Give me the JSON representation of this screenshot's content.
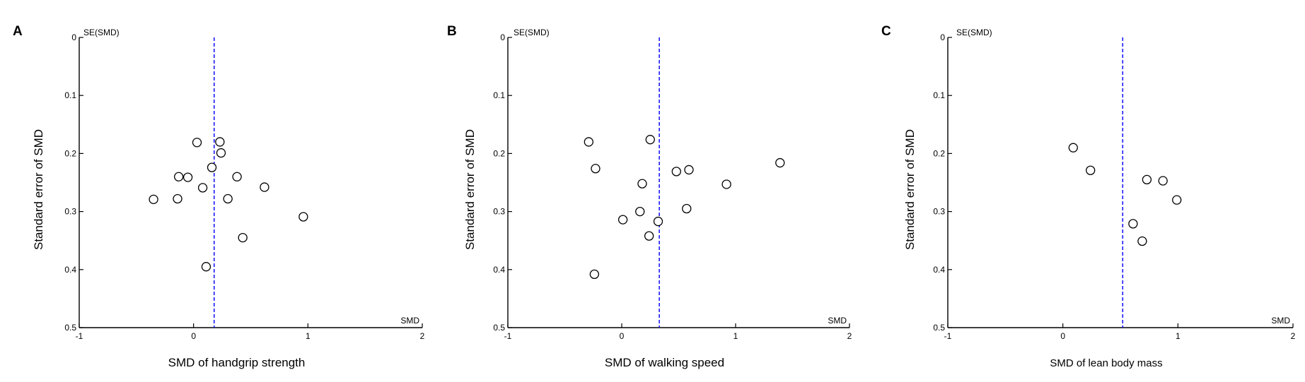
{
  "chart_data": [
    {
      "type": "scatter",
      "panel_label": "A",
      "xlabel": "SMD of handgrip strength",
      "ylabel": "Standard error of SMD",
      "x_axis_tag": "SMD",
      "y_axis_tag": "SE(SMD)",
      "xlim": [
        -1,
        2
      ],
      "ylim": [
        0,
        0.5
      ],
      "y_inverted": true,
      "xticks": [
        -1,
        0,
        1,
        2
      ],
      "yticks": [
        0,
        0.1,
        0.2,
        0.3,
        0.4,
        0.5
      ],
      "pooled_smd": 0.18,
      "points": [
        {
          "x": 0.03,
          "y": 0.181
        },
        {
          "x": 0.23,
          "y": 0.18
        },
        {
          "x": 0.24,
          "y": 0.199
        },
        {
          "x": 0.16,
          "y": 0.224
        },
        {
          "x": -0.13,
          "y": 0.24
        },
        {
          "x": -0.05,
          "y": 0.241
        },
        {
          "x": 0.38,
          "y": 0.24
        },
        {
          "x": 0.08,
          "y": 0.259
        },
        {
          "x": 0.62,
          "y": 0.258
        },
        {
          "x": -0.35,
          "y": 0.279
        },
        {
          "x": -0.14,
          "y": 0.278
        },
        {
          "x": 0.3,
          "y": 0.278
        },
        {
          "x": 0.96,
          "y": 0.309
        },
        {
          "x": 0.43,
          "y": 0.345
        },
        {
          "x": 0.11,
          "y": 0.395
        }
      ]
    },
    {
      "type": "scatter",
      "panel_label": "B",
      "xlabel": "SMD of walking speed",
      "ylabel": "Standard error of SMD",
      "x_axis_tag": "SMD",
      "y_axis_tag": "SE(SMD)",
      "xlim": [
        -1,
        2
      ],
      "ylim": [
        0,
        0.5
      ],
      "y_inverted": true,
      "xticks": [
        -1,
        0,
        1,
        2
      ],
      "yticks": [
        0,
        0.1,
        0.2,
        0.3,
        0.4,
        0.5
      ],
      "pooled_smd": 0.33,
      "points": [
        {
          "x": -0.29,
          "y": 0.18
        },
        {
          "x": 0.25,
          "y": 0.176
        },
        {
          "x": -0.23,
          "y": 0.226
        },
        {
          "x": 0.18,
          "y": 0.252
        },
        {
          "x": 0.48,
          "y": 0.231
        },
        {
          "x": 0.59,
          "y": 0.228
        },
        {
          "x": 1.39,
          "y": 0.216
        },
        {
          "x": 0.92,
          "y": 0.253
        },
        {
          "x": 0.57,
          "y": 0.295
        },
        {
          "x": 0.16,
          "y": 0.3
        },
        {
          "x": 0.01,
          "y": 0.314
        },
        {
          "x": 0.32,
          "y": 0.317
        },
        {
          "x": 0.24,
          "y": 0.342
        },
        {
          "x": -0.24,
          "y": 0.408
        }
      ]
    },
    {
      "type": "scatter",
      "panel_label": "C",
      "xlabel": "SMD of lean body mass",
      "ylabel": "Standard error of SMD",
      "x_axis_tag": "SMD",
      "y_axis_tag": "SE(SMD)",
      "xlim": [
        -1,
        2
      ],
      "ylim": [
        0,
        0.5
      ],
      "y_inverted": true,
      "xticks": [
        -1,
        0,
        1,
        2
      ],
      "yticks": [
        0,
        0.1,
        0.2,
        0.3,
        0.4,
        0.5
      ],
      "pooled_smd": 0.52,
      "points": [
        {
          "x": 0.09,
          "y": 0.19
        },
        {
          "x": 0.24,
          "y": 0.229
        },
        {
          "x": 0.73,
          "y": 0.245
        },
        {
          "x": 0.87,
          "y": 0.247
        },
        {
          "x": 0.99,
          "y": 0.28
        },
        {
          "x": 0.61,
          "y": 0.321
        },
        {
          "x": 0.69,
          "y": 0.351
        }
      ]
    }
  ],
  "colors": {
    "pooled_line": "#1a1aff",
    "axis": "#000000",
    "marker_stroke": "#000000",
    "marker_fill": "#ffffff"
  }
}
